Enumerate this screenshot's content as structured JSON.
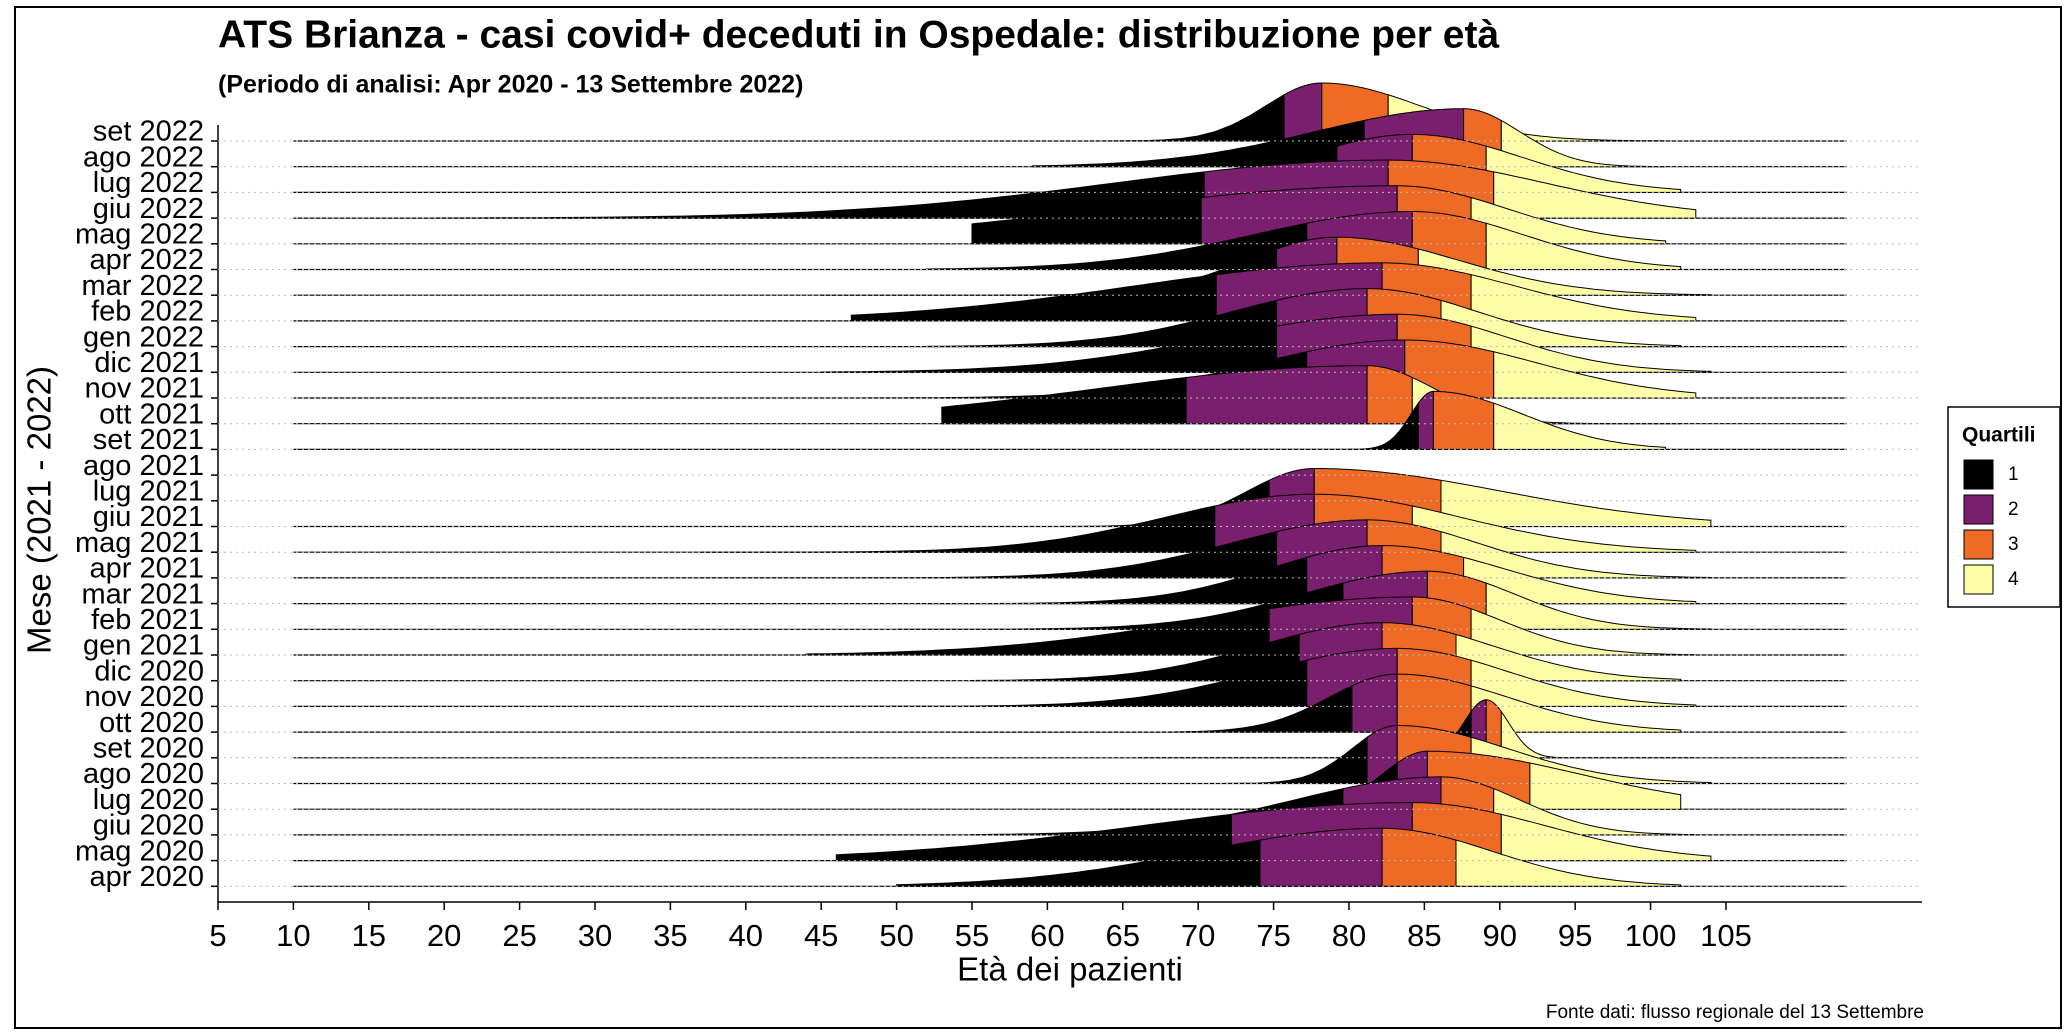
{
  "chart_data": {
    "type": "ridgeline",
    "title": "ATS Brianza - casi covid+ deceduti in Ospedale: distribuzione per età",
    "subtitle": "(Periodo di analisi: Apr 2020 - 13 Settembre 2022)",
    "x_label": "Età dei pazienti",
    "y_label": "Mese (2021 - 2022)",
    "source": "Fonte dati: flusso regionale del 13 Settembre",
    "categories": [
      "set 2022",
      "ago 2022",
      "lug 2022",
      "giu 2022",
      "mag 2022",
      "apr 2022",
      "mar 2022",
      "feb 2022",
      "gen 2022",
      "dic 2021",
      "nov 2021",
      "ott 2021",
      "set 2021",
      "ago 2021",
      "lug 2021",
      "giu 2021",
      "mag 2021",
      "apr 2021",
      "mar 2021",
      "feb 2021",
      "gen 2021",
      "dic 2020",
      "nov 2020",
      "ott 2020",
      "set 2020",
      "ago 2020",
      "lug 2020",
      "giu 2020",
      "mag 2020",
      "apr 2020"
    ],
    "min": [
      30,
      59,
      44,
      15,
      55,
      52,
      45,
      47,
      52,
      45,
      41,
      53,
      72,
      null,
      null,
      60,
      37,
      37,
      52,
      50,
      44,
      55,
      47,
      54,
      66,
      52,
      64,
      55,
      46,
      50
    ],
    "q1": [
      75.7,
      81,
      79.2,
      70.4,
      70.2,
      77.2,
      75.2,
      71.2,
      75.2,
      75.2,
      77.2,
      69.2,
      84.6,
      null,
      null,
      74.7,
      71.1,
      75.2,
      77.2,
      79.6,
      74.7,
      76.7,
      77.2,
      80.2,
      88.1,
      81.2,
      83.2,
      79.6,
      72.2,
      74.1
    ],
    "median": [
      78.2,
      87.6,
      84.2,
      82.6,
      83.2,
      84.2,
      79.2,
      82.2,
      81.2,
      83.2,
      83.7,
      81.2,
      85.6,
      null,
      null,
      77.7,
      77.7,
      81.2,
      82.2,
      85.2,
      84.2,
      82.2,
      83.2,
      83.2,
      89.1,
      83.2,
      85.2,
      86.1,
      84.2,
      82.2
    ],
    "q3": [
      82.6,
      90.1,
      89.1,
      89.6,
      88.1,
      89.1,
      84.6,
      88.1,
      86.1,
      88.1,
      89.6,
      84.2,
      89.6,
      null,
      null,
      86.1,
      84.2,
      86.1,
      87.6,
      89.1,
      88.1,
      87.1,
      88.1,
      88.1,
      90.1,
      88.1,
      92,
      89.6,
      90.1,
      87.1
    ],
    "max": [
      101,
      101,
      102,
      103,
      101,
      102,
      104,
      103,
      102,
      104,
      103,
      102,
      101,
      null,
      null,
      104,
      103,
      104,
      103,
      104,
      103,
      102,
      103,
      102,
      103,
      104,
      102,
      103,
      104,
      102
    ],
    "density_range": [
      10,
      113
    ],
    "xlim": [
      5,
      118
    ],
    "xticks": [
      5,
      10,
      15,
      20,
      25,
      30,
      35,
      40,
      45,
      50,
      55,
      60,
      65,
      70,
      75,
      80,
      85,
      90,
      95,
      100,
      105
    ],
    "grid": true,
    "legend": {
      "title": "Quartili",
      "position": "right",
      "items": [
        {
          "label": "1",
          "color": "#000000"
        },
        {
          "label": "2",
          "color": "#7a1f6e"
        },
        {
          "label": "3",
          "color": "#ee6a25"
        },
        {
          "label": "4",
          "color": "#fcfda6"
        }
      ]
    }
  }
}
